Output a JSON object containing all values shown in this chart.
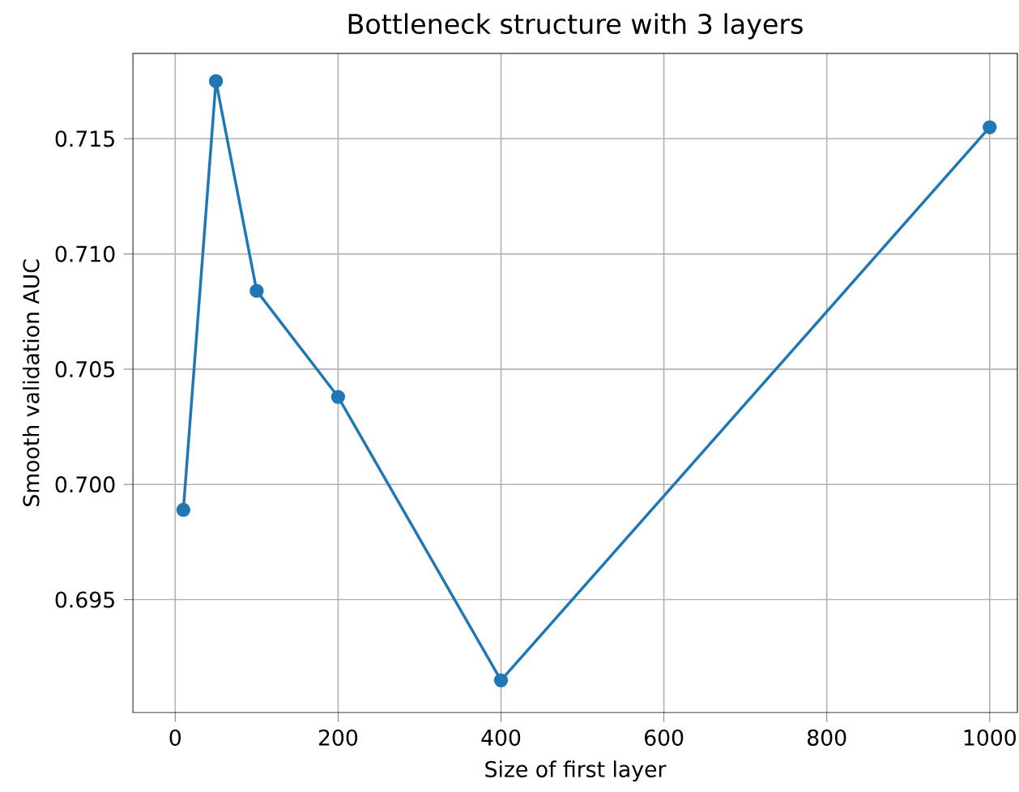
{
  "chart_data": {
    "type": "line",
    "title": "Bottleneck structure with 3 layers",
    "xlabel": "Size of first layer",
    "ylabel": "Smooth validation AUC",
    "x": [
      10,
      50,
      100,
      200,
      400,
      1000
    ],
    "series": [
      {
        "color": "#1f77b4",
        "values": [
          0.6989,
          0.7175,
          0.7084,
          0.7038,
          0.6915,
          0.7155
        ]
      }
    ],
    "xlim": [
      -52,
      1034
    ],
    "ylim": [
      0.6901,
      0.7187
    ],
    "xticks": [
      0,
      200,
      400,
      600,
      800,
      1000
    ],
    "yticks": [
      0.695,
      {
        "value": 0.7,
        "label": "0.700"
      },
      0.705,
      {
        "value": 0.71,
        "label": "0.710"
      },
      0.715
    ],
    "grid": true,
    "marker": "circle",
    "line_style": "solid"
  }
}
